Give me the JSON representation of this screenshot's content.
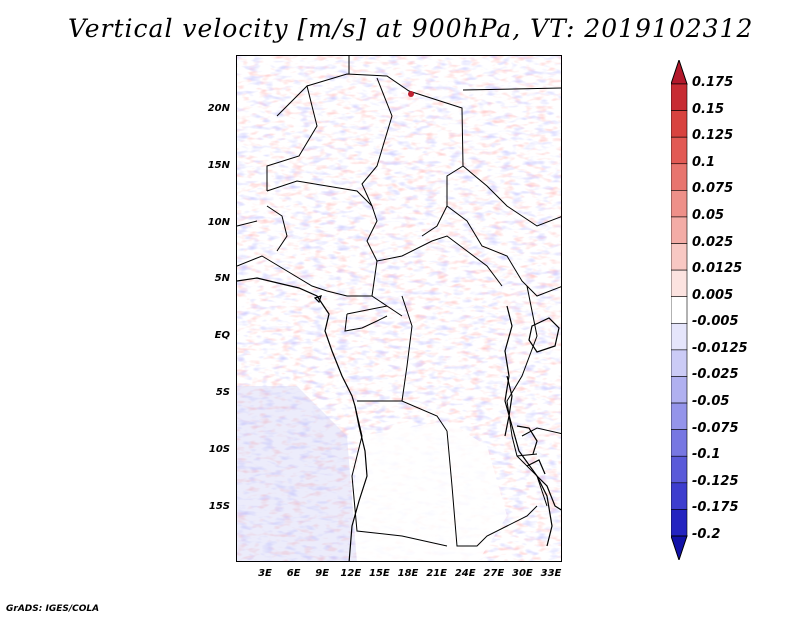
{
  "title": "Vertical velocity [m/s] at 900hPa, VT: 2019102312",
  "credit": "GrADS: IGES/COLA",
  "map": {
    "lat_ticks": [
      "20N",
      "15N",
      "10N",
      "5N",
      "EQ",
      "5S",
      "10S",
      "15S"
    ],
    "lon_ticks": [
      "3E",
      "6E",
      "9E",
      "12E",
      "15E",
      "18E",
      "21E",
      "24E",
      "27E",
      "30E",
      "33E"
    ],
    "lon_range": [
      0,
      35
    ],
    "lat_range": [
      -20,
      25
    ]
  },
  "colorbar": {
    "levels": [
      "0.175",
      "0.15",
      "0.125",
      "0.1",
      "0.075",
      "0.05",
      "0.025",
      "0.0125",
      "0.005",
      "-0.005",
      "-0.0125",
      "-0.025",
      "-0.05",
      "-0.075",
      "-0.1",
      "-0.125",
      "-0.175",
      "-0.2"
    ],
    "colors": [
      "#b3192b",
      "#c72c33",
      "#d8433f",
      "#e25a54",
      "#e8756e",
      "#ee9089",
      "#f3aca6",
      "#f8c8c3",
      "#fce3e0",
      "#ffffff",
      "#e5e5fb",
      "#cbcbf6",
      "#b0b0f0",
      "#9494ea",
      "#7777e2",
      "#5a5ad9",
      "#3d3dce",
      "#2424c0",
      "#1212a8"
    ]
  }
}
